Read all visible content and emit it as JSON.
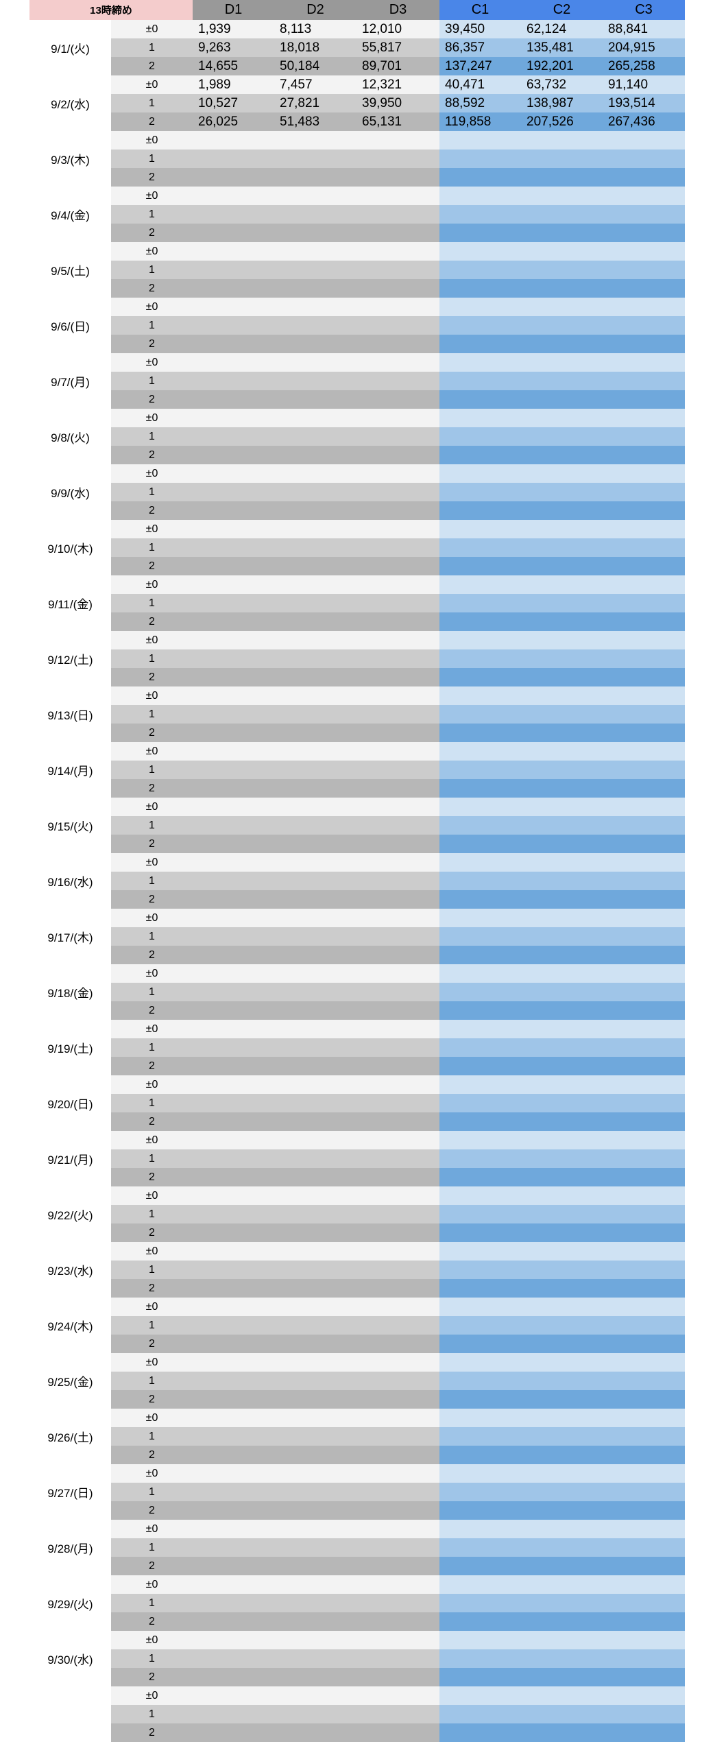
{
  "header": {
    "corner": "13時締め",
    "columns": [
      "D1",
      "D2",
      "D3",
      "C1",
      "C2",
      "C3"
    ]
  },
  "groups": [
    {
      "date": "9/1/(火)",
      "rows": [
        {
          "label": "±0",
          "values": [
            "1,939",
            "8,113",
            "12,010",
            "39,450",
            "62,124",
            "88,841"
          ]
        },
        {
          "label": "1",
          "values": [
            "9,263",
            "18,018",
            "55,817",
            "86,357",
            "135,481",
            "204,915"
          ]
        },
        {
          "label": "2",
          "values": [
            "14,655",
            "50,184",
            "89,701",
            "137,247",
            "192,201",
            "265,258"
          ]
        }
      ]
    },
    {
      "date": "9/2/(水)",
      "rows": [
        {
          "label": "±0",
          "values": [
            "1,989",
            "7,457",
            "12,321",
            "40,471",
            "63,732",
            "91,140"
          ]
        },
        {
          "label": "1",
          "values": [
            "10,527",
            "27,821",
            "39,950",
            "88,592",
            "138,987",
            "193,514"
          ]
        },
        {
          "label": "2",
          "values": [
            "26,025",
            "51,483",
            "65,131",
            "119,858",
            "207,526",
            "267,436"
          ]
        }
      ]
    },
    {
      "date": "9/3/(木)",
      "rows": [
        {
          "label": "±0"
        },
        {
          "label": "1"
        },
        {
          "label": "2"
        }
      ]
    },
    {
      "date": "9/4/(金)",
      "rows": [
        {
          "label": "±0"
        },
        {
          "label": "1"
        },
        {
          "label": "2"
        }
      ]
    },
    {
      "date": "9/5/(土)",
      "rows": [
        {
          "label": "±0"
        },
        {
          "label": "1"
        },
        {
          "label": "2"
        }
      ]
    },
    {
      "date": "9/6/(日)",
      "rows": [
        {
          "label": "±0"
        },
        {
          "label": "1"
        },
        {
          "label": "2"
        }
      ]
    },
    {
      "date": "9/7/(月)",
      "rows": [
        {
          "label": "±0"
        },
        {
          "label": "1"
        },
        {
          "label": "2"
        }
      ]
    },
    {
      "date": "9/8/(火)",
      "rows": [
        {
          "label": "±0"
        },
        {
          "label": "1"
        },
        {
          "label": "2"
        }
      ]
    },
    {
      "date": "9/9/(水)",
      "rows": [
        {
          "label": "±0"
        },
        {
          "label": "1"
        },
        {
          "label": "2"
        }
      ]
    },
    {
      "date": "9/10/(木)",
      "rows": [
        {
          "label": "±0"
        },
        {
          "label": "1"
        },
        {
          "label": "2"
        }
      ]
    },
    {
      "date": "9/11/(金)",
      "rows": [
        {
          "label": "±0"
        },
        {
          "label": "1"
        },
        {
          "label": "2"
        }
      ]
    },
    {
      "date": "9/12/(土)",
      "rows": [
        {
          "label": "±0"
        },
        {
          "label": "1"
        },
        {
          "label": "2"
        }
      ]
    },
    {
      "date": "9/13/(日)",
      "rows": [
        {
          "label": "±0"
        },
        {
          "label": "1"
        },
        {
          "label": "2"
        }
      ]
    },
    {
      "date": "9/14/(月)",
      "rows": [
        {
          "label": "±0"
        },
        {
          "label": "1"
        },
        {
          "label": "2"
        }
      ]
    },
    {
      "date": "9/15/(火)",
      "rows": [
        {
          "label": "±0"
        },
        {
          "label": "1"
        },
        {
          "label": "2"
        }
      ]
    },
    {
      "date": "9/16/(水)",
      "rows": [
        {
          "label": "±0"
        },
        {
          "label": "1"
        },
        {
          "label": "2"
        }
      ]
    },
    {
      "date": "9/17/(木)",
      "rows": [
        {
          "label": "±0"
        },
        {
          "label": "1"
        },
        {
          "label": "2"
        }
      ]
    },
    {
      "date": "9/18/(金)",
      "rows": [
        {
          "label": "±0"
        },
        {
          "label": "1"
        },
        {
          "label": "2"
        }
      ]
    },
    {
      "date": "9/19/(土)",
      "rows": [
        {
          "label": "±0"
        },
        {
          "label": "1"
        },
        {
          "label": "2"
        }
      ]
    },
    {
      "date": "9/20/(日)",
      "rows": [
        {
          "label": "±0"
        },
        {
          "label": "1"
        },
        {
          "label": "2"
        }
      ]
    },
    {
      "date": "9/21/(月)",
      "rows": [
        {
          "label": "±0"
        },
        {
          "label": "1"
        },
        {
          "label": "2"
        }
      ]
    },
    {
      "date": "9/22/(火)",
      "rows": [
        {
          "label": "±0"
        },
        {
          "label": "1"
        },
        {
          "label": "2"
        }
      ]
    },
    {
      "date": "9/23/(水)",
      "rows": [
        {
          "label": "±0"
        },
        {
          "label": "1"
        },
        {
          "label": "2"
        }
      ]
    },
    {
      "date": "9/24/(木)",
      "rows": [
        {
          "label": "±0"
        },
        {
          "label": "1"
        },
        {
          "label": "2"
        }
      ]
    },
    {
      "date": "9/25/(金)",
      "rows": [
        {
          "label": "±0"
        },
        {
          "label": "1"
        },
        {
          "label": "2"
        }
      ]
    },
    {
      "date": "9/26/(土)",
      "rows": [
        {
          "label": "±0"
        },
        {
          "label": "1"
        },
        {
          "label": "2"
        }
      ]
    },
    {
      "date": "9/27/(日)",
      "rows": [
        {
          "label": "±0"
        },
        {
          "label": "1"
        },
        {
          "label": "2"
        }
      ]
    },
    {
      "date": "9/28/(月)",
      "rows": [
        {
          "label": "±0"
        },
        {
          "label": "1"
        },
        {
          "label": "2"
        }
      ]
    },
    {
      "date": "9/29/(火)",
      "rows": [
        {
          "label": "±0"
        },
        {
          "label": "1"
        },
        {
          "label": "2"
        }
      ]
    },
    {
      "date": "9/30/(水)",
      "rows": [
        {
          "label": "±0"
        },
        {
          "label": "1"
        },
        {
          "label": "2"
        }
      ]
    },
    {
      "rows": [
        {
          "label": "±0"
        },
        {
          "label": "1"
        },
        {
          "label": "2"
        }
      ]
    }
  ]
}
